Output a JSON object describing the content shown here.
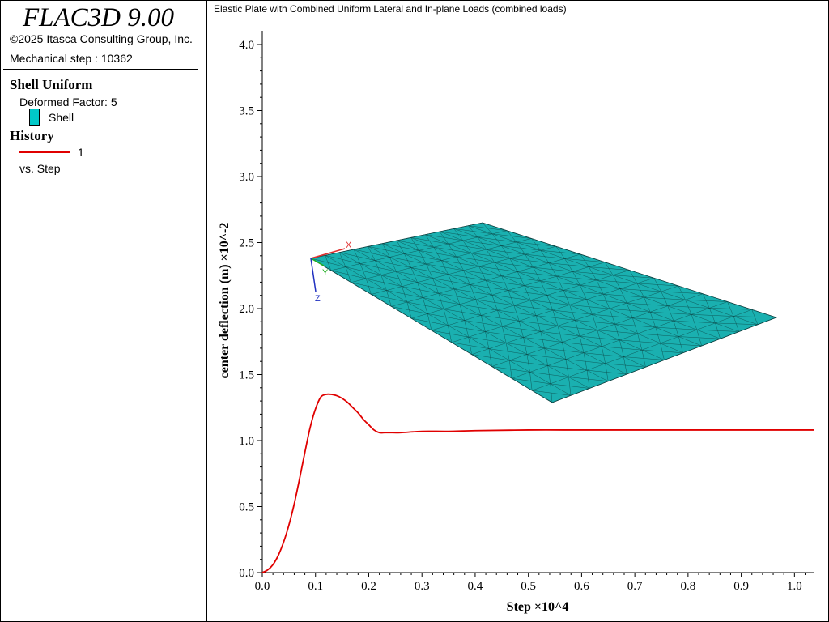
{
  "sidebar": {
    "app_title": "FLAC3D 9.00",
    "copyright": "©2025 Itasca Consulting Group, Inc.",
    "mechanical_step": "Mechanical step : 10362",
    "shell_section": {
      "title": "Shell Uniform",
      "deformed_factor": "Deformed Factor: 5",
      "legend_label": "Shell",
      "legend_color": "#00c8c8"
    },
    "history_section": {
      "title": "History",
      "legend_label": "1",
      "legend_color": "#e00000",
      "vs_label": "vs. Step"
    }
  },
  "plot": {
    "title": "Elastic Plate with Combined Uniform Lateral and In-plane Loads (combined loads)",
    "mesh_color": "#1ab0b0",
    "axis_triad": {
      "x": "X",
      "y": "Y",
      "z": "Z"
    }
  },
  "chart_data": {
    "type": "line",
    "xlabel": "Step ×10^4",
    "ylabel": "center deflection (m) ×10^-2",
    "xlim": [
      0,
      1.036
    ],
    "ylim": [
      0,
      4.0
    ],
    "xticks": [
      "0.0",
      "0.1",
      "0.2",
      "0.3",
      "0.4",
      "0.5",
      "0.6",
      "0.7",
      "0.8",
      "0.9",
      "1.0"
    ],
    "yticks": [
      "0.0",
      "0.5",
      "1.0",
      "1.5",
      "2.0",
      "2.5",
      "3.0",
      "3.5",
      "4.0"
    ],
    "grid": false,
    "series": [
      {
        "name": "1",
        "color": "#e00000",
        "x": [
          0,
          0.01,
          0.02,
          0.03,
          0.04,
          0.05,
          0.06,
          0.07,
          0.08,
          0.09,
          0.1,
          0.11,
          0.12,
          0.13,
          0.14,
          0.15,
          0.16,
          0.17,
          0.18,
          0.19,
          0.2,
          0.21,
          0.22,
          0.23,
          0.24,
          0.26,
          0.3,
          0.35,
          0.4,
          0.5,
          0.6,
          0.7,
          0.8,
          0.9,
          1.0,
          1.036
        ],
        "y": [
          0,
          0.02,
          0.06,
          0.13,
          0.23,
          0.36,
          0.52,
          0.71,
          0.91,
          1.1,
          1.24,
          1.33,
          1.35,
          1.35,
          1.34,
          1.32,
          1.29,
          1.25,
          1.21,
          1.16,
          1.12,
          1.08,
          1.06,
          1.06,
          1.06,
          1.06,
          1.07,
          1.07,
          1.075,
          1.08,
          1.08,
          1.08,
          1.08,
          1.08,
          1.08,
          1.08
        ]
      }
    ]
  }
}
